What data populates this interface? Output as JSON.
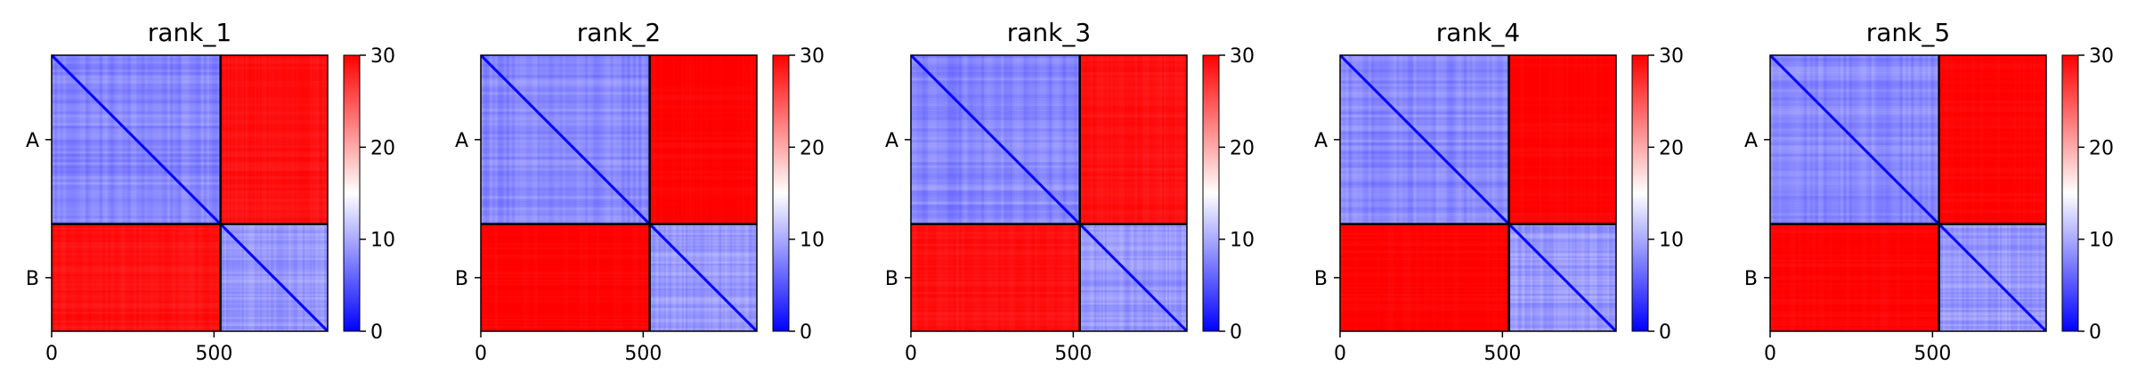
{
  "figure": {
    "colormap": "bwr",
    "colors": {
      "low": "#0000ff",
      "mid": "#ffffff",
      "high": "#ff0000",
      "frame": "#000000"
    }
  },
  "chart_data": [
    {
      "type": "heatmap",
      "title": "rank_1",
      "xlabel": "",
      "ylabel": "",
      "x_ticks": [
        0,
        500
      ],
      "xlim": [
        0,
        850
      ],
      "chains": [
        {
          "label": "A",
          "start": 0,
          "end": 520
        },
        {
          "label": "B",
          "start": 520,
          "end": 850
        }
      ],
      "colorbar": {
        "min": 0,
        "max": 30,
        "ticks": [
          0,
          10,
          20,
          30
        ]
      },
      "colorbar_tick_labels": [
        "0",
        "10",
        "20",
        "30"
      ],
      "x_tick_labels": [
        "0",
        "500"
      ],
      "mean_values": {
        "A-A": 8,
        "A-B": 29,
        "B-A": 29,
        "B-B": 9
      },
      "background_value": 30
    },
    {
      "type": "heatmap",
      "title": "rank_2",
      "xlabel": "",
      "ylabel": "",
      "x_ticks": [
        0,
        500
      ],
      "xlim": [
        0,
        850
      ],
      "chains": [
        {
          "label": "A",
          "start": 0,
          "end": 520
        },
        {
          "label": "B",
          "start": 520,
          "end": 850
        }
      ],
      "colorbar": {
        "min": 0,
        "max": 30,
        "ticks": [
          0,
          10,
          20,
          30
        ]
      },
      "colorbar_tick_labels": [
        "0",
        "10",
        "20",
        "30"
      ],
      "x_tick_labels": [
        "0",
        "500"
      ],
      "mean_values": {
        "A-A": 8,
        "A-B": 30,
        "B-A": 30,
        "B-B": 9
      },
      "background_value": 30
    },
    {
      "type": "heatmap",
      "title": "rank_3",
      "xlabel": "",
      "ylabel": "",
      "x_ticks": [
        0,
        500
      ],
      "xlim": [
        0,
        850
      ],
      "chains": [
        {
          "label": "A",
          "start": 0,
          "end": 520
        },
        {
          "label": "B",
          "start": 520,
          "end": 850
        }
      ],
      "colorbar": {
        "min": 0,
        "max": 30,
        "ticks": [
          0,
          10,
          20,
          30
        ]
      },
      "colorbar_tick_labels": [
        "0",
        "10",
        "20",
        "30"
      ],
      "x_tick_labels": [
        "0",
        "500"
      ],
      "mean_values": {
        "A-A": 8,
        "A-B": 29,
        "B-A": 29,
        "B-B": 9
      },
      "background_value": 30
    },
    {
      "type": "heatmap",
      "title": "rank_4",
      "xlabel": "",
      "ylabel": "",
      "x_ticks": [
        0,
        500
      ],
      "xlim": [
        0,
        850
      ],
      "chains": [
        {
          "label": "A",
          "start": 0,
          "end": 520
        },
        {
          "label": "B",
          "start": 520,
          "end": 850
        }
      ],
      "colorbar": {
        "min": 0,
        "max": 30,
        "ticks": [
          0,
          10,
          20,
          30
        ]
      },
      "colorbar_tick_labels": [
        "0",
        "10",
        "20",
        "30"
      ],
      "x_tick_labels": [
        "0",
        "500"
      ],
      "mean_values": {
        "A-A": 8,
        "A-B": 30,
        "B-A": 30,
        "B-B": 9
      },
      "background_value": 30
    },
    {
      "type": "heatmap",
      "title": "rank_5",
      "xlabel": "",
      "ylabel": "",
      "x_ticks": [
        0,
        500
      ],
      "xlim": [
        0,
        850
      ],
      "chains": [
        {
          "label": "A",
          "start": 0,
          "end": 520
        },
        {
          "label": "B",
          "start": 520,
          "end": 850
        }
      ],
      "colorbar": {
        "min": 0,
        "max": 30,
        "ticks": [
          0,
          10,
          20,
          30
        ]
      },
      "colorbar_tick_labels": [
        "0",
        "10",
        "20",
        "30"
      ],
      "x_tick_labels": [
        "0",
        "500"
      ],
      "mean_values": {
        "A-A": 8,
        "A-B": 30,
        "B-A": 30,
        "B-B": 9
      },
      "background_value": 30
    }
  ]
}
